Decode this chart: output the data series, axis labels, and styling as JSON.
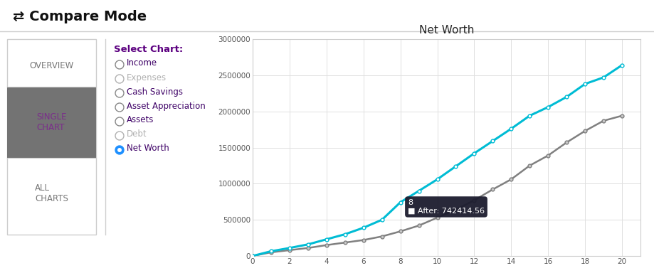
{
  "title": "Net Worth",
  "header_title": "⇄ Compare Mode",
  "before_x": [
    0,
    1,
    2,
    3,
    4,
    5,
    6,
    7,
    8,
    9,
    10,
    11,
    12,
    13,
    14,
    15,
    16,
    17,
    18,
    19,
    20
  ],
  "before_y": [
    0,
    50000,
    80000,
    110000,
    150000,
    185000,
    220000,
    270000,
    340000,
    420000,
    530000,
    640000,
    770000,
    920000,
    1060000,
    1250000,
    1390000,
    1570000,
    1730000,
    1870000,
    1940000
  ],
  "after_x": [
    0,
    1,
    2,
    3,
    4,
    5,
    6,
    7,
    8,
    9,
    10,
    11,
    12,
    13,
    14,
    15,
    16,
    17,
    18,
    19,
    20
  ],
  "after_y": [
    0,
    65000,
    110000,
    160000,
    230000,
    300000,
    390000,
    500000,
    742414,
    900000,
    1060000,
    1240000,
    1420000,
    1590000,
    1760000,
    1940000,
    2060000,
    2200000,
    2380000,
    2470000,
    2640000
  ],
  "before_color": "#808080",
  "after_color": "#00bcd4",
  "before_marker_face": "#c8c8c8",
  "after_marker_face": "#ffffff",
  "tooltip_x": 8,
  "tooltip_label": "8",
  "tooltip_value": "After: 742414.56",
  "tooltip_bg": "#1c1c2e",
  "tooltip_accent": "#00bcd4",
  "xlim": [
    0,
    21
  ],
  "ylim": [
    0,
    3000000
  ],
  "yticks": [
    0,
    500000,
    1000000,
    1500000,
    2000000,
    2500000,
    3000000
  ],
  "xticks": [
    0,
    2,
    4,
    6,
    8,
    10,
    12,
    14,
    16,
    18,
    20
  ],
  "bg_color": "#ffffff",
  "grid_color": "#e0e0e0",
  "nav_selected_bg": "#737373",
  "nav_selected_text": "#7b2d8b",
  "nav_text": "#777777",
  "select_chart_title": "Select Chart:",
  "select_chart_color": "#5c0080",
  "radio_items": [
    "Income",
    "Expenses",
    "Cash Savings",
    "Asset Appreciation",
    "Assets",
    "Debt",
    "Net Worth"
  ],
  "radio_disabled": [
    1,
    5
  ],
  "radio_selected": 6,
  "radio_active_color": "#1e90ff",
  "radio_text_color": "#3d0066",
  "radio_disabled_color": "#b0b0b0",
  "legend_before_color": "#c8c8c8",
  "legend_before_border": "#808080",
  "legend_after_color": "#b2f0f7",
  "legend_after_border": "#00bcd4"
}
